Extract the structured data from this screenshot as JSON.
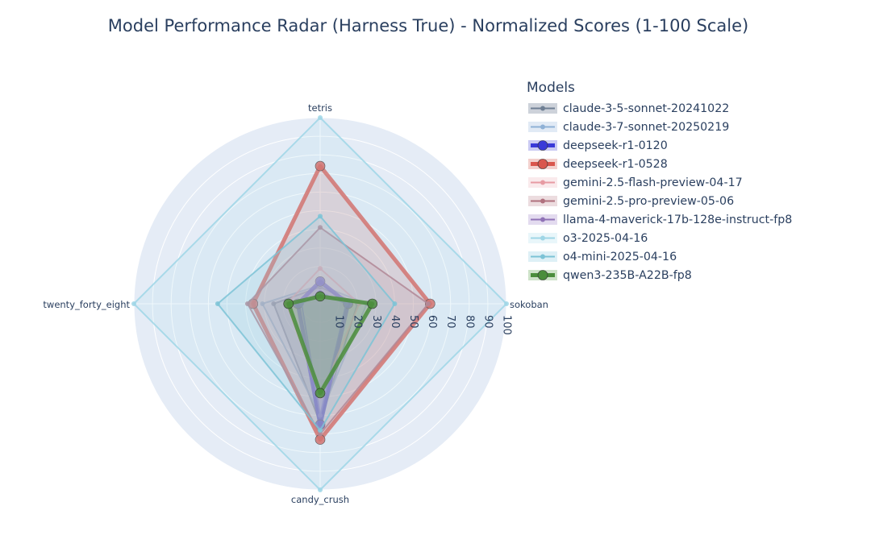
{
  "chart_data": {
    "type": "radar",
    "title": "Model Performance Radar (Harness True) - Normalized Scores (1-100 Scale)",
    "axes": [
      "sokoban",
      "tetris",
      "twenty_forty_eight",
      "candy_crush"
    ],
    "radial_range": [
      0,
      100
    ],
    "radial_ticks": [
      "10",
      "20",
      "30",
      "40",
      "50",
      "60",
      "70",
      "80",
      "90",
      "100"
    ],
    "legend": {
      "title": "Models",
      "placement": "right"
    },
    "series": [
      {
        "name": "claude-3-5-sonnet-20241022",
        "color": "#6f7f94",
        "fill": "#5a6b85",
        "width": 2,
        "marker": 3,
        "values": [
          20,
          9,
          25,
          64
        ]
      },
      {
        "name": "claude-3-7-sonnet-20250219",
        "color": "#8fb1d6",
        "fill": "#9bb8de",
        "width": 2,
        "marker": 3,
        "values": [
          25,
          10,
          31,
          60
        ]
      },
      {
        "name": "deepseek-r1-0120",
        "color": "#3a3ad8",
        "fill": "#5050d6",
        "width": 5,
        "marker": 6,
        "values": [
          15,
          12,
          12,
          65
        ]
      },
      {
        "name": "deepseek-r1-0528",
        "color": "#d9564d",
        "fill": "#d7625a",
        "width": 5,
        "marker": 6,
        "values": [
          59,
          74,
          36,
          73
        ]
      },
      {
        "name": "gemini-2.5-flash-preview-04-17",
        "color": "#e79ba3",
        "fill": "#f0b9c0",
        "width": 2,
        "marker": 3,
        "values": [
          21,
          19,
          18,
          50
        ]
      },
      {
        "name": "gemini-2.5-pro-preview-05-06",
        "color": "#b0707e",
        "fill": "#c08a96",
        "width": 2,
        "marker": 3,
        "values": [
          58,
          41,
          39,
          70
        ]
      },
      {
        "name": "llama-4-maverick-17b-128e-instruct-fp8",
        "color": "#9073b7",
        "fill": "#a387c9",
        "width": 2,
        "marker": 3,
        "values": [
          14,
          6,
          10,
          60
        ]
      },
      {
        "name": "o3-2025-04-16",
        "color": "#9fd6e6",
        "fill": "#b5e1ef",
        "width": 2,
        "marker": 3,
        "values": [
          100,
          100,
          100,
          100
        ]
      },
      {
        "name": "o4-mini-2025-04-16",
        "color": "#7cc3d6",
        "fill": "#93cde0",
        "width": 2,
        "marker": 3,
        "values": [
          40,
          47,
          55,
          68
        ]
      },
      {
        "name": "qwen3-235B-A22B-fp8",
        "color": "#4a8d3b",
        "fill": "#5a9e4a",
        "width": 5,
        "marker": 6,
        "values": [
          28,
          4,
          17,
          48
        ]
      }
    ]
  }
}
